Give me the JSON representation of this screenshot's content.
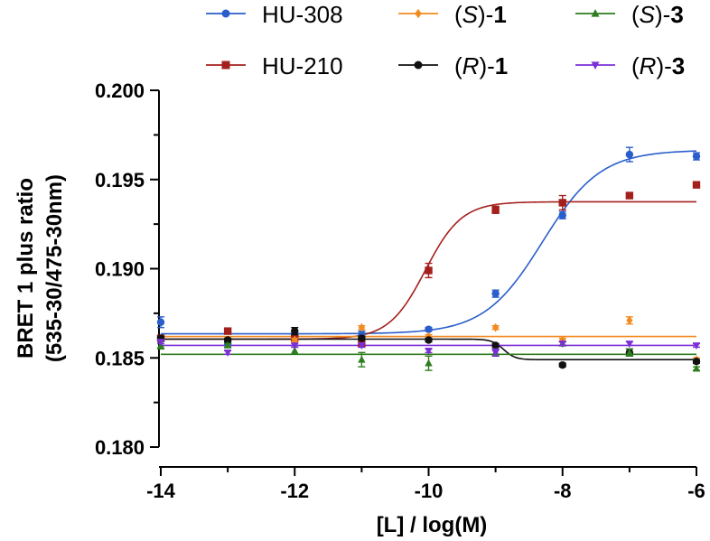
{
  "chart_data": {
    "type": "scatter",
    "title": "",
    "xlabel": "[L] / log(M)",
    "ylabel_line1": "BRET 1 plus ratio",
    "ylabel_line2": "(535-30/475-30nm)",
    "xlim": [
      -14,
      -6
    ],
    "ylim": [
      0.18,
      0.2
    ],
    "x_ticks": [
      -14,
      -12,
      -10,
      -8,
      -6
    ],
    "x_tick_labels": [
      "-14",
      "-12",
      "-10",
      "-8",
      "-6"
    ],
    "y_ticks": [
      0.18,
      0.185,
      0.19,
      0.195,
      0.2
    ],
    "y_tick_labels": [
      "0.180",
      "0.185",
      "0.190",
      "0.195",
      "0.200"
    ],
    "grid": false,
    "legend_position": "top",
    "series": [
      {
        "name": "HU-308",
        "legend_text": "HU-308",
        "legend_suffix": "",
        "color": "#2a5ecb",
        "marker": "circle",
        "x": [
          -14,
          -13,
          -12,
          -11,
          -10,
          -9,
          -8,
          -7,
          -6
        ],
        "y": [
          0.187,
          0.1858,
          0.1862,
          0.1863,
          0.1866,
          0.1886,
          0.193,
          0.1964,
          0.1963
        ],
        "err": [
          0.0003,
          0.0002,
          0.0002,
          0.0002,
          0.0001,
          0.0002,
          0.0002,
          0.0004,
          0.0002
        ],
        "fit": {
          "kind": "sigmoid",
          "bottom": 0.18635,
          "top": 0.19665,
          "logEC50": -8.3,
          "hill": 1.0
        }
      },
      {
        "name": "HU-210",
        "legend_text": "HU-210",
        "legend_suffix": "",
        "color": "#a3201d",
        "marker": "square",
        "x": [
          -14,
          -13,
          -12,
          -11,
          -10,
          -9,
          -8,
          -7,
          -6
        ],
        "y": [
          0.1861,
          0.1865,
          0.1861,
          0.1858,
          0.1899,
          0.1933,
          0.1937,
          0.1941,
          0.1947
        ],
        "err": [
          0.0001,
          0.0001,
          0.0001,
          0.0002,
          0.0004,
          0.0002,
          0.0004,
          0.0001,
          0.0001
        ],
        "fit": {
          "kind": "sigmoid",
          "bottom": 0.18605,
          "top": 0.19375,
          "logEC50": -10.05,
          "hill": 1.6
        }
      },
      {
        "name": "(S)-1",
        "legend_text": "S",
        "legend_suffix": "1",
        "color": "#f28a1f",
        "marker": "diamond",
        "x": [
          -14,
          -13,
          -12,
          -11,
          -10,
          -9,
          -8,
          -7,
          -6
        ],
        "y": [
          0.1861,
          0.186,
          0.186,
          0.1867,
          0.1862,
          0.1867,
          0.186,
          0.1871,
          0.1849
        ],
        "err": [
          0.0001,
          0.0001,
          0.0001,
          0.0001,
          0.0001,
          0.0001,
          0.0001,
          0.0002,
          0.0001
        ],
        "fit": {
          "kind": "flat",
          "value": 0.1862
        }
      },
      {
        "name": "(R)-1",
        "legend_text": "R",
        "legend_suffix": "1",
        "color": "#111111",
        "marker": "circle",
        "x": [
          -14,
          -13,
          -12,
          -11,
          -10,
          -9,
          -8,
          -7,
          -6
        ],
        "y": [
          0.1861,
          0.186,
          0.1865,
          0.1861,
          0.186,
          0.1857,
          0.1846,
          0.1853,
          0.1848
        ],
        "err": [
          0.0001,
          0.0001,
          0.0002,
          0.0001,
          0.0001,
          0.0001,
          0.0001,
          0.0002,
          0.0001
        ],
        "fit": {
          "kind": "sigmoid",
          "bottom": 0.18605,
          "top": 0.1849,
          "logEC50": -8.88,
          "hill": 5.0
        }
      },
      {
        "name": "(S)-3",
        "legend_text": "S",
        "legend_suffix": "3",
        "color": "#2e7d1e",
        "marker": "triangle-up",
        "x": [
          -14,
          -13,
          -12,
          -11,
          -10,
          -9,
          -8,
          -7,
          -6
        ],
        "y": [
          0.1857,
          0.1857,
          0.1854,
          0.1849,
          0.1847,
          0.1853,
          0.1858,
          0.1853,
          0.1844
        ],
        "err": [
          0.0002,
          0.0001,
          0.0002,
          0.0004,
          0.0004,
          0.0002,
          0.0001,
          0.0002,
          0.0001
        ],
        "fit": {
          "kind": "flat",
          "value": 0.1852
        }
      },
      {
        "name": "(R)-3",
        "legend_text": "R",
        "legend_suffix": "3",
        "color": "#7b2fd6",
        "marker": "triangle-down",
        "x": [
          -14,
          -13,
          -12,
          -11,
          -10,
          -9,
          -8,
          -7,
          -6
        ],
        "y": [
          0.1859,
          0.1853,
          0.1857,
          0.1857,
          0.1854,
          0.1853,
          0.1858,
          0.1858,
          0.1857
        ],
        "err": [
          0.0001,
          0.0001,
          0.0001,
          0.0001,
          0.0001,
          0.0002,
          0.0001,
          0.0001,
          0.0001
        ],
        "fit": {
          "kind": "flat",
          "value": 0.1857
        }
      }
    ]
  }
}
